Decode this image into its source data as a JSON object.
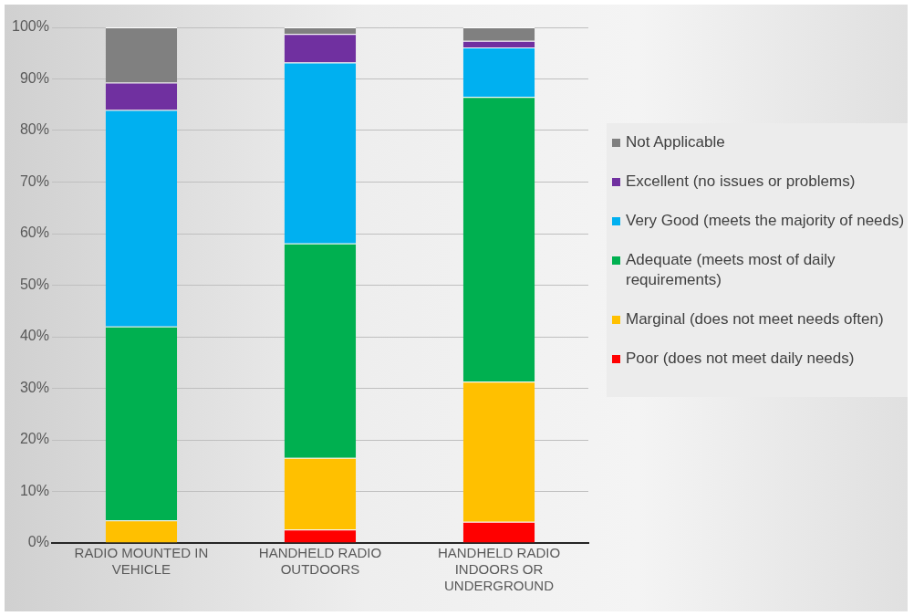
{
  "chart_data": {
    "type": "bar",
    "stacked": true,
    "categories": [
      "RADIO MOUNTED IN VEHICLE",
      "HANDHELD RADIO OUTDOORS",
      "HANDHELD RADIO INDOORS OR UNDERGROUND"
    ],
    "series": [
      {
        "name": "Poor (does not meet daily needs)",
        "color": "#ff0000",
        "values": [
          0,
          2.6,
          4.1
        ]
      },
      {
        "name": "Marginal (does not meet needs often)",
        "color": "#ffc000",
        "values": [
          4.4,
          13.9,
          27.2
        ]
      },
      {
        "name": "Adequate (meets most of daily requirements)",
        "color": "#00b050",
        "values": [
          37.6,
          41.6,
          55.2
        ]
      },
      {
        "name": "Very Good (meets the majority of needs)",
        "color": "#00b0f0",
        "values": [
          42.0,
          35.1,
          9.6
        ]
      },
      {
        "name": "Excellent (no issues or problems)",
        "color": "#7030a0",
        "values": [
          5.3,
          5.5,
          1.3
        ]
      },
      {
        "name": "Not Applicable",
        "color": "#808080",
        "values": [
          10.7,
          1.3,
          2.6
        ]
      }
    ],
    "ylim": [
      0,
      100
    ],
    "yticks": [
      {
        "value": 0,
        "label": "0%"
      },
      {
        "value": 10,
        "label": "10%"
      },
      {
        "value": 20,
        "label": "20%"
      },
      {
        "value": 30,
        "label": "30%"
      },
      {
        "value": 40,
        "label": "40%"
      },
      {
        "value": 50,
        "label": "50%"
      },
      {
        "value": 60,
        "label": "60%"
      },
      {
        "value": 70,
        "label": "70%"
      },
      {
        "value": 80,
        "label": "80%"
      },
      {
        "value": 90,
        "label": "90%"
      },
      {
        "value": 100,
        "label": "100%"
      }
    ],
    "grid": "y",
    "legend": "right"
  }
}
